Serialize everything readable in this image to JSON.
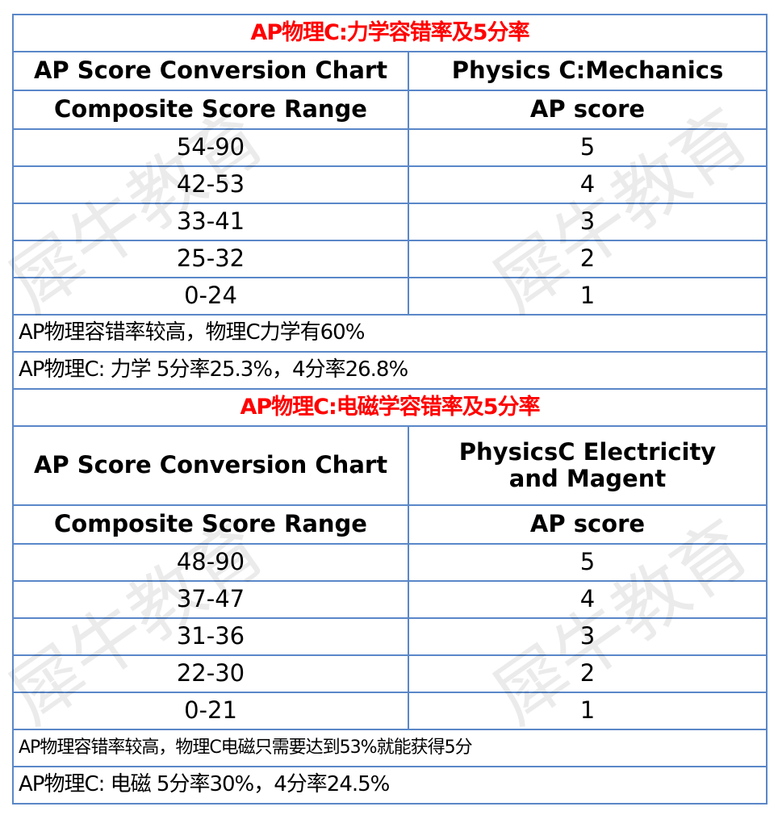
{
  "watermark": "犀牛教育",
  "colors": {
    "border": "#5a87c8",
    "title": "#ff0000"
  },
  "tables": [
    {
      "title": "AP物理C:力学容错率及5分率",
      "header": {
        "left": "AP Score Conversion Chart",
        "right": "Physics C:Mechanics"
      },
      "columns": {
        "left": "Composite Score Range",
        "right": "AP score"
      },
      "rows": [
        {
          "range": "54-90",
          "score": "5"
        },
        {
          "range": "42-53",
          "score": "4"
        },
        {
          "range": "33-41",
          "score": "3"
        },
        {
          "range": "25-32",
          "score": "2"
        },
        {
          "range": "0-24",
          "score": "1"
        }
      ],
      "notes": [
        "AP物理容错率较高，物理C力学有60%",
        "AP物理C: 力学 5分率25.3%，4分率26.8%"
      ]
    },
    {
      "title": "AP物理C:电磁学容错率及5分率",
      "header": {
        "left": "AP Score Conversion Chart",
        "right": "PhysicsC Electricity and Magent"
      },
      "columns": {
        "left": "Composite Score Range",
        "right": "AP score"
      },
      "rows": [
        {
          "range": "48-90",
          "score": "5"
        },
        {
          "range": "37-47",
          "score": "4"
        },
        {
          "range": "31-36",
          "score": "3"
        },
        {
          "range": "22-30",
          "score": "2"
        },
        {
          "range": "0-21",
          "score": "1"
        }
      ],
      "notes": [
        "AP物理容错率较高，物理C电磁只需要达到53%就能获得5分",
        "AP物理C: 电磁 5分率30%，4分率24.5%"
      ]
    }
  ]
}
